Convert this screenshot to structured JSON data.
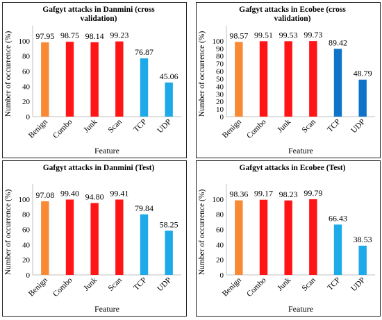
{
  "colors": {
    "orange": "#F98A35",
    "red": "#FF1515",
    "light_blue": "#1EAAE8",
    "dark_blue": "#0E73C9",
    "border": "#222222"
  },
  "chart_data": [
    {
      "type": "bar",
      "title_lines": [
        "Gafgyt attacks in Danmini (cross",
        "validation)"
      ],
      "xlabel": "Feature",
      "ylabel": "Number of occurrence (%)",
      "categories": [
        "Benign",
        "Combo",
        "Junk",
        "Scan",
        "TCP",
        "UDP"
      ],
      "values": [
        97.95,
        98.75,
        98.14,
        99.23,
        76.87,
        45.06
      ],
      "value_labels": [
        "97.95",
        "98.75",
        "98.14",
        "99.23",
        "76.87",
        "45.06"
      ],
      "bar_colors": [
        "orange",
        "red",
        "red",
        "red",
        "light_blue",
        "light_blue"
      ],
      "ylim": [
        0,
        120
      ],
      "yticks": [
        "0",
        "20",
        "40",
        "60",
        "80",
        "100"
      ],
      "grid": false,
      "legend": "none"
    },
    {
      "type": "bar",
      "title_lines": [
        "Gafgyt attacks in Ecobee (cross",
        "validation)"
      ],
      "xlabel": "Feature",
      "ylabel": "Number of occurrence (%)",
      "categories": [
        "Benign",
        "Combo",
        "Junk",
        "Scan",
        "TCP",
        "UDP"
      ],
      "values": [
        98.57,
        99.51,
        99.53,
        99.73,
        89.42,
        48.79
      ],
      "value_labels": [
        "98.57",
        "99.51",
        "99.53",
        "99.73",
        "89.42",
        "48.79"
      ],
      "bar_colors": [
        "orange",
        "red",
        "red",
        "red",
        "dark_blue",
        "dark_blue"
      ],
      "ylim": [
        0,
        120
      ],
      "yticks": [
        "0",
        "10",
        "20",
        "30",
        "40",
        "50",
        "60",
        "70",
        "80",
        "90",
        "100"
      ],
      "grid": false,
      "legend": "none"
    },
    {
      "type": "bar",
      "title_lines": [
        "Gafgyt attacks in Danmini (Test)"
      ],
      "xlabel": "Feature",
      "ylabel": "Number of occurrence (%)",
      "categories": [
        "Benign",
        "Combo",
        "Junk",
        "Scan",
        "TCP",
        "UDP"
      ],
      "values": [
        97.08,
        99.4,
        94.8,
        99.41,
        79.84,
        58.25
      ],
      "value_labels": [
        "97.08",
        "99.40",
        "94.80",
        "99.41",
        "79.84",
        "58.25"
      ],
      "bar_colors": [
        "orange",
        "red",
        "red",
        "red",
        "light_blue",
        "light_blue"
      ],
      "ylim": [
        0,
        120
      ],
      "yticks": [
        "0",
        "20",
        "40",
        "60",
        "80",
        "100"
      ],
      "grid": false,
      "legend": "none"
    },
    {
      "type": "bar",
      "title_lines": [
        "Gafgyt attacks in Ecobee (Test)"
      ],
      "xlabel": "Feature",
      "ylabel": "Number of occurrence (%)",
      "categories": [
        "Benign",
        "Combo",
        "Junk",
        "Scan",
        "TCP",
        "UDP"
      ],
      "values": [
        98.36,
        99.17,
        98.23,
        99.79,
        66.43,
        38.53
      ],
      "value_labels": [
        "98.36",
        "99.17",
        "98.23",
        "99.79",
        "66.43",
        "38.53"
      ],
      "bar_colors": [
        "orange",
        "red",
        "red",
        "red",
        "light_blue",
        "light_blue"
      ],
      "ylim": [
        0,
        120
      ],
      "yticks": [
        "0",
        "20",
        "40",
        "60",
        "80",
        "100"
      ],
      "grid": false,
      "legend": "none"
    }
  ]
}
